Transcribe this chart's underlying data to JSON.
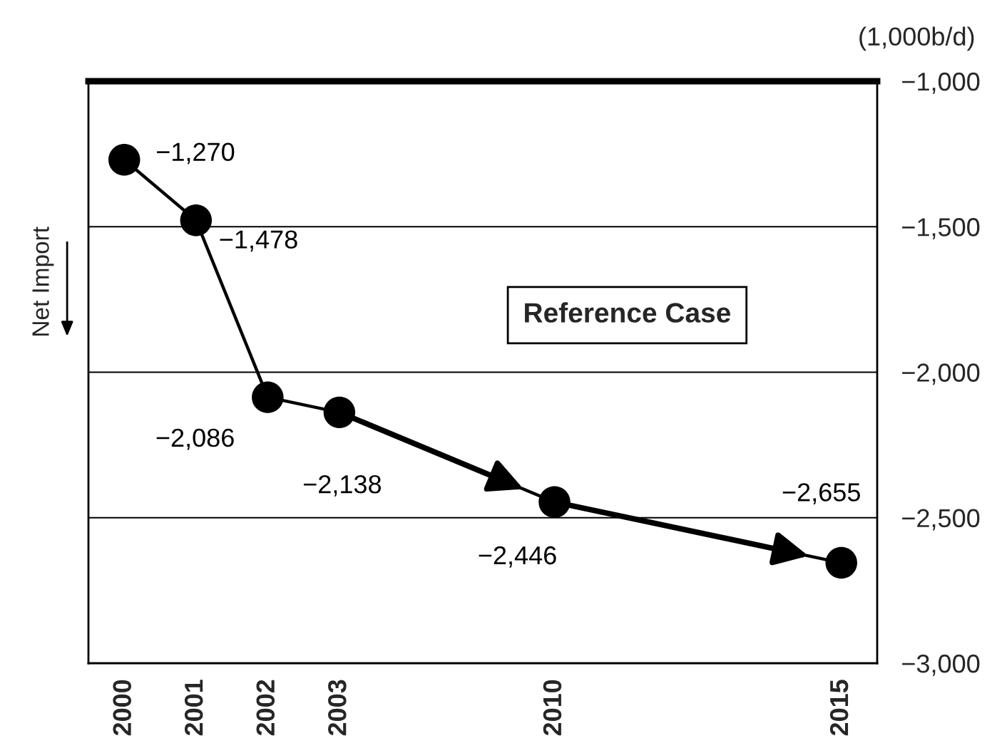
{
  "chart_data": {
    "type": "line",
    "ylabel": "(1,000b/d)",
    "annotations": [
      "Net Import",
      "Reference Case"
    ],
    "categories": [
      "2000",
      "2001",
      "2002",
      "2003",
      null,
      null,
      "2010",
      null,
      null,
      null,
      "2015"
    ],
    "series": [
      {
        "color": "#000000",
        "values": [
          -1270,
          -1478,
          -2086,
          -2138,
          null,
          null,
          -2446,
          null,
          null,
          null,
          -2655
        ],
        "value_labels": [
          "−1,270",
          "−1,478",
          "−2,086",
          "−2,138",
          null,
          null,
          "−2,446",
          null,
          null,
          null,
          "−2,655"
        ]
      }
    ],
    "ylim": [
      -3000,
      -1000
    ],
    "yticks": [
      {
        "value": -3000,
        "label": "−3,000"
      },
      {
        "value": -2500,
        "label": "−2,500"
      },
      {
        "value": -2000,
        "label": "−2,000"
      },
      {
        "value": -1500,
        "label": "−1,500"
      },
      {
        "value": -1000,
        "label": "−1,000"
      }
    ],
    "grid": "y",
    "marker": "circle",
    "line_style": "solid"
  }
}
